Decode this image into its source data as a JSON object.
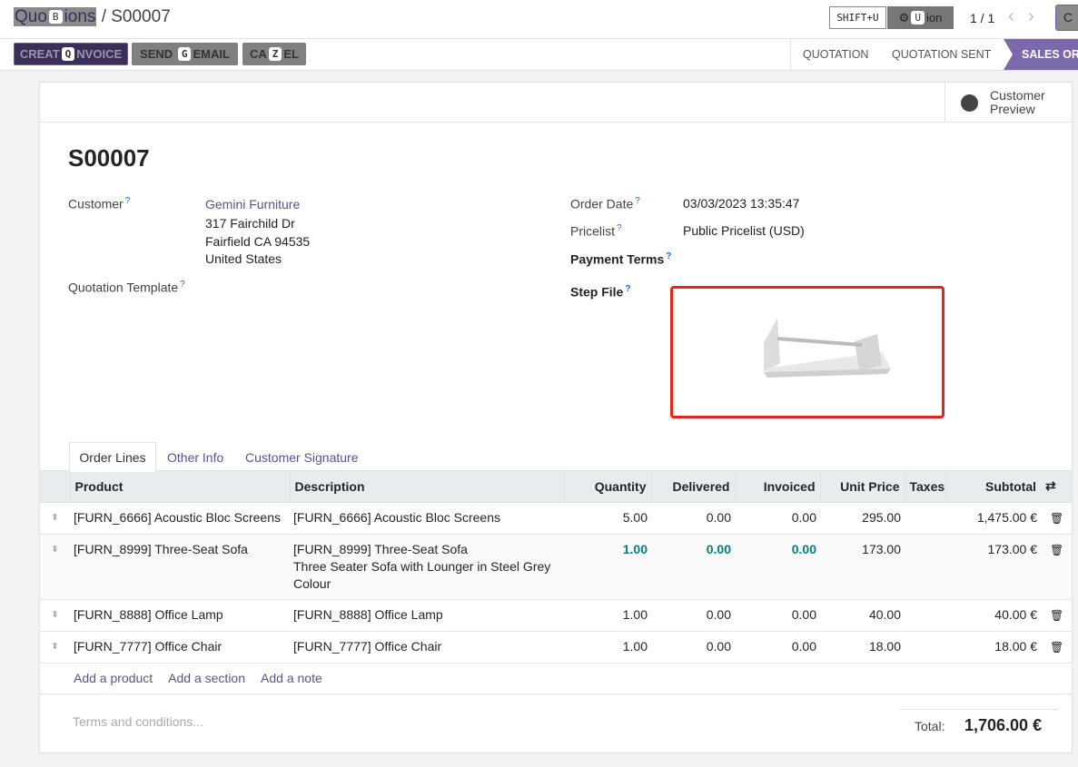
{
  "breadcrumb": {
    "parent_prefix": "Quo",
    "parent_suffix": "ions",
    "parent_key": "B",
    "separator": "/",
    "current": "S00007"
  },
  "topbar": {
    "shift_key": "SHIFT+U",
    "action_prefix": "⚙ ",
    "action_suffix": "ion",
    "action_key": "U",
    "pager": "1 / 1",
    "prev_icon": "‹",
    "next_icon": "›",
    "create_label": "C"
  },
  "actions": {
    "create_invoice": {
      "prefix": "CREAT",
      "key": "Q",
      "suffix": "NVOICE"
    },
    "send_email": {
      "prefix": "SEND",
      "key": "G",
      "suffix": "EMAIL"
    },
    "cancel": {
      "prefix": "CA",
      "key": "Z",
      "suffix": "EL"
    }
  },
  "status": {
    "stages": [
      "QUOTATION",
      "QUOTATION SENT",
      "SALES ORDER"
    ],
    "active": "SALES ORDER"
  },
  "customer_preview": {
    "icon": "globe-icon",
    "line1": "Customer",
    "line2": "Preview"
  },
  "form": {
    "title": "S00007",
    "customer_label": "Customer",
    "customer_name": "Gemini Furniture",
    "address": [
      "317 Fairchild Dr",
      "Fairfield CA 94535",
      "United States"
    ],
    "quotation_template_label": "Quotation Template",
    "order_date_label": "Order Date",
    "order_date": "03/03/2023 13:35:47",
    "pricelist_label": "Pricelist",
    "pricelist": "Public Pricelist (USD)",
    "payment_terms_label": "Payment Terms",
    "step_file_label": "Step File",
    "help": "?"
  },
  "tabs": [
    "Order Lines",
    "Other Info",
    "Customer Signature"
  ],
  "table": {
    "headers": [
      "Product",
      "Description",
      "Quantity",
      "Delivered",
      "Invoiced",
      "Unit Price",
      "Taxes",
      "Subtotal"
    ],
    "rows": [
      {
        "product": "[FURN_6666] Acoustic Bloc Screens",
        "description": [
          "[FURN_6666] Acoustic Bloc Screens"
        ],
        "quantity": "5.00",
        "delivered": "0.00",
        "invoiced": "0.00",
        "unit_price": "295.00",
        "taxes": "",
        "subtotal": "1,475.00 €"
      },
      {
        "product": "[FURN_8999] Three-Seat Sofa",
        "description": [
          "[FURN_8999] Three-Seat Sofa",
          "Three Seater Sofa with Lounger in Steel Grey",
          "Colour"
        ],
        "quantity": "1.00",
        "delivered": "0.00",
        "invoiced": "0.00",
        "unit_price": "173.00",
        "taxes": "",
        "subtotal": "173.00 €"
      },
      {
        "product": "[FURN_8888] Office Lamp",
        "description": [
          "[FURN_8888] Office Lamp"
        ],
        "quantity": "1.00",
        "delivered": "0.00",
        "invoiced": "0.00",
        "unit_price": "40.00",
        "taxes": "",
        "subtotal": "40.00 €"
      },
      {
        "product": "[FURN_7777] Office Chair",
        "description": [
          "[FURN_7777] Office Chair"
        ],
        "quantity": "1.00",
        "delivered": "0.00",
        "invoiced": "0.00",
        "unit_price": "18.00",
        "taxes": "",
        "subtotal": "18.00 €"
      }
    ],
    "add_product": "Add a product",
    "add_section": "Add a section",
    "add_note": "Add a note"
  },
  "footer": {
    "terms_placeholder": "Terms and conditions...",
    "total_label": "Total:",
    "total_value": "1,706.00 €"
  },
  "colors": {
    "primary": "#3b2f5a",
    "stage_active": "#7c69ab",
    "link": "#5f4f8f",
    "highlight": "#017e84",
    "step_file_border": "#e3261c"
  }
}
